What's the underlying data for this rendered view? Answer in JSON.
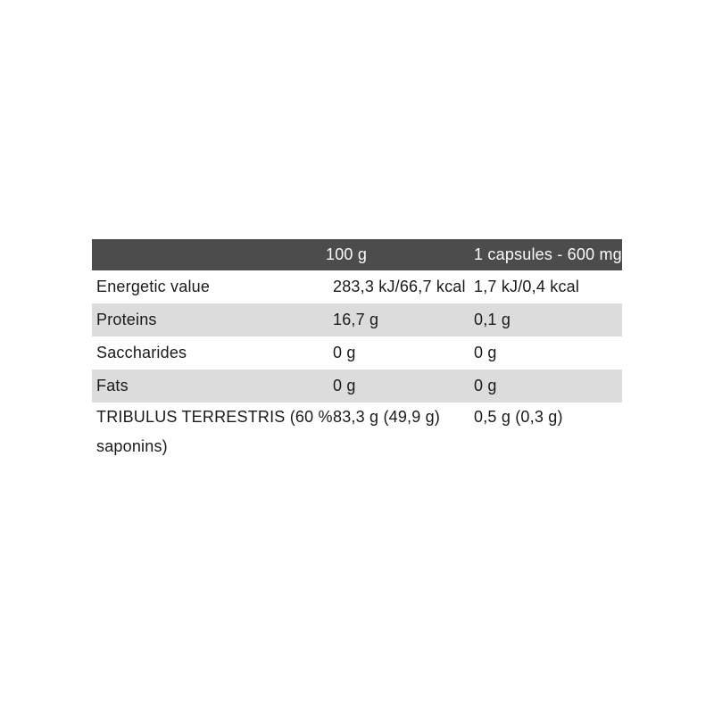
{
  "page": {
    "background_color": "#ffffff"
  },
  "table": {
    "colors": {
      "header_background": "#4c4c4c",
      "header_text": "#fbfbfb",
      "stripe_background": "#dcdcdc",
      "body_text": "#1a1a1a"
    },
    "header": {
      "col1": "",
      "col2": "100 g",
      "col3": "1 capsules - 600 mg"
    },
    "rows": [
      {
        "label": "Energetic value",
        "per_100g": "283,3 kJ/66,7 kcal",
        "per_capsule": "1,7 kJ/0,4 kcal"
      },
      {
        "label": "Proteins",
        "per_100g": "16,7 g",
        "per_capsule": "0,1 g"
      },
      {
        "label": "Saccharides",
        "per_100g": "0 g",
        "per_capsule": "0 g"
      },
      {
        "label": "Fats",
        "per_100g": "0 g",
        "per_capsule": "0 g"
      },
      {
        "label": "TRIBULUS TERRESTRIS (60 % saponins)",
        "per_100g": "83,3 g (49,9 g)",
        "per_capsule": "0,5 g (0,3 g)"
      }
    ]
  }
}
